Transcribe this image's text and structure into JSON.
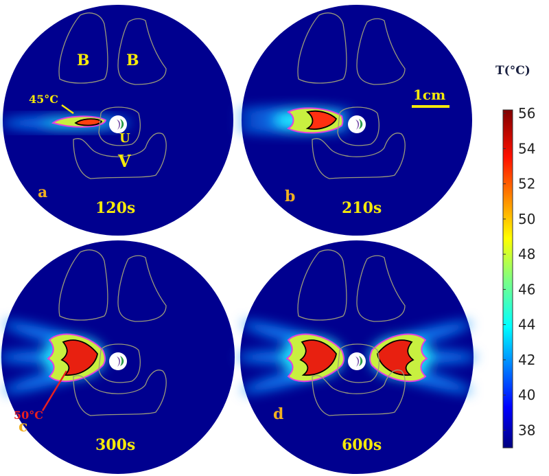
{
  "colorbar": {
    "title": "T(°C)",
    "min": 37,
    "max": 56.2,
    "ticks": [
      "56",
      "54",
      "52",
      "50",
      "48",
      "46",
      "44",
      "42",
      "40",
      "38"
    ],
    "tick_values": [
      56,
      54,
      52,
      50,
      48,
      46,
      44,
      42,
      40,
      38
    ],
    "colormap": "jet"
  },
  "annotations": {
    "bone_left": "B",
    "bone_right": "B",
    "urethra": "U",
    "vessel": "V",
    "isotherm_45": "45°C",
    "isotherm_50": "50°C",
    "scale_bar": "1cm"
  },
  "panels": [
    {
      "letter": "a",
      "time": "120s"
    },
    {
      "letter": "b",
      "time": "210s"
    },
    {
      "letter": "c",
      "time": "300s"
    },
    {
      "letter": "d",
      "time": "600s"
    }
  ],
  "colors": {
    "background_field": "#00008f",
    "isotherm_45": "#e040e0",
    "isotherm_50": "#000000",
    "organ_outline": "#9a9a7a",
    "label": "#f5e90a"
  }
}
